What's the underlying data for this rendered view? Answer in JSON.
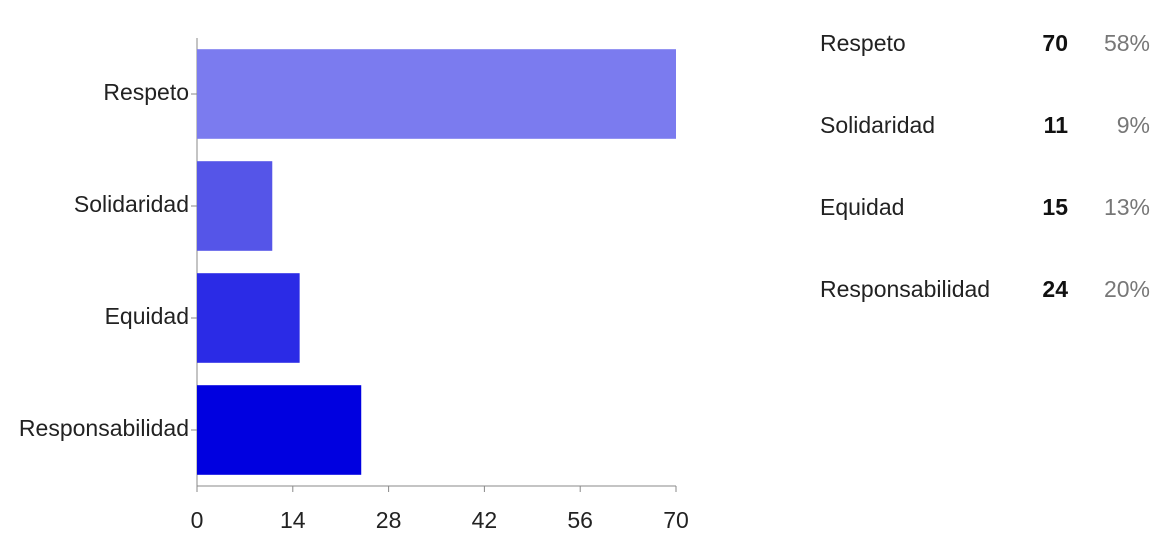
{
  "chart_data": {
    "type": "hbar",
    "categories": [
      "Respeto",
      "Solidaridad",
      "Equidad",
      "Responsabilidad"
    ],
    "values": [
      70,
      11,
      15,
      24
    ],
    "colors": [
      "#7b7bef",
      "#5555e8",
      "#2b2be6",
      "#0000e0"
    ],
    "xlim": [
      0,
      70
    ],
    "xticks": [
      0,
      14,
      28,
      42,
      56,
      70
    ],
    "shares": [
      58,
      9,
      13,
      20
    ],
    "share_labels": [
      "58%",
      "9%",
      "13%",
      "20%"
    ]
  }
}
